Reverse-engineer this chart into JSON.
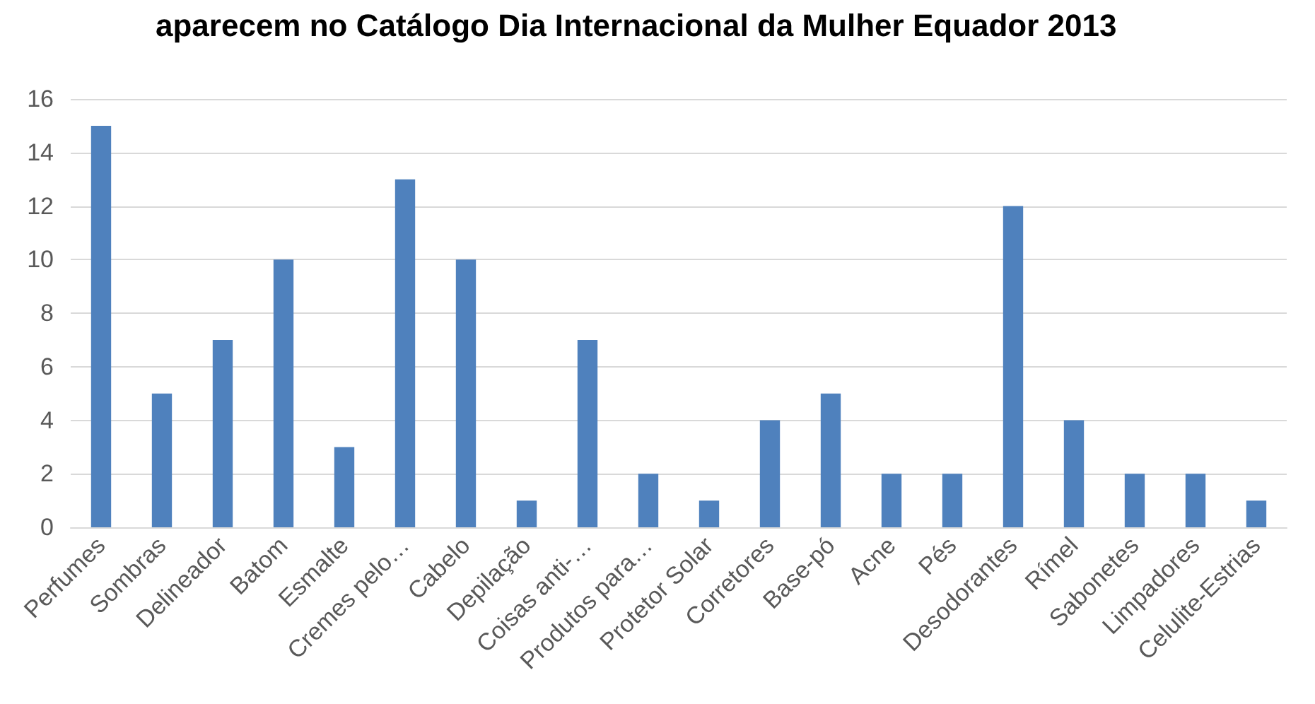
{
  "chart_data": {
    "type": "bar",
    "title": "aparecem no Catálogo Dia Internacional da Mulher Equador 2013",
    "categories": [
      "Perfumes",
      "Sombras",
      "Delineador",
      "Batom",
      "Esmalte",
      "Cremes pelo…",
      "Cabelo",
      "Depilação",
      "Coisas anti-…",
      "Produtos para…",
      "Protetor Solar",
      "Corretores",
      "Base-pó",
      "Acne",
      "Pés",
      "Desodorantes",
      "Rímel",
      "Sabonetes",
      "Limpadores",
      "Celulite-Estrias"
    ],
    "values": [
      15,
      5,
      7,
      10,
      3,
      13,
      10,
      1,
      7,
      2,
      1,
      4,
      5,
      2,
      2,
      12,
      4,
      2,
      2,
      1
    ],
    "color": "#4f81bd",
    "ylim": [
      0,
      16
    ],
    "yticks": [
      0,
      2,
      4,
      6,
      8,
      10,
      12,
      14,
      16
    ],
    "grid": "y"
  }
}
